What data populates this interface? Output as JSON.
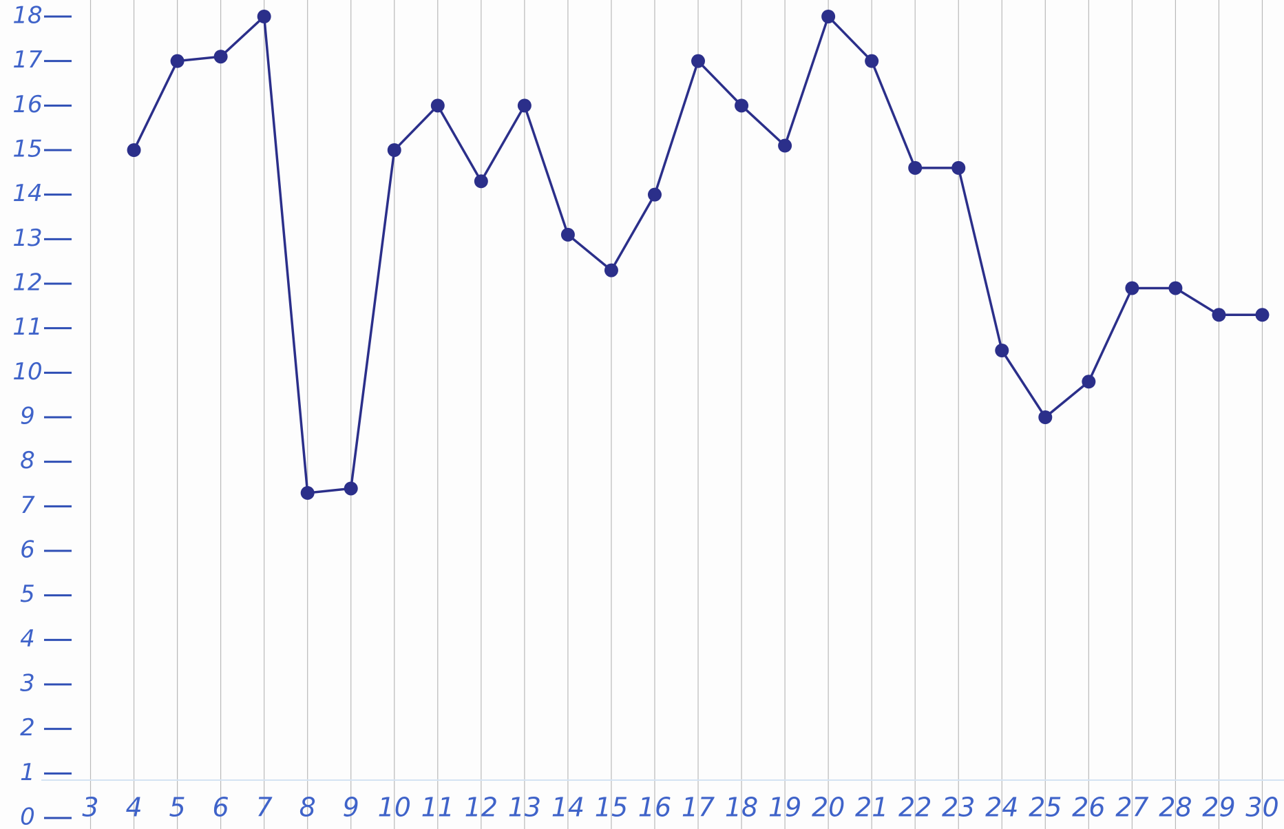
{
  "chart_data": {
    "type": "line",
    "categories": [
      "3",
      "4",
      "5",
      "6",
      "7",
      "8",
      "9",
      "10",
      "11",
      "12",
      "13",
      "14",
      "15",
      "16",
      "17",
      "18",
      "19",
      "20",
      "21",
      "22",
      "23",
      "24",
      "25",
      "26",
      "27",
      "28",
      "29",
      "30"
    ],
    "series": [
      {
        "color": "#2b2f8a",
        "values": [
          null,
          15,
          17,
          17.1,
          18,
          7.3,
          7.4,
          15,
          16,
          14.3,
          16,
          13.1,
          12.3,
          14,
          17,
          16,
          15.1,
          18,
          17,
          14.6,
          14.6,
          10.5,
          9,
          9.8,
          11.9,
          11.9,
          11.3,
          11.3
        ]
      }
    ],
    "ylim": [
      0,
      18
    ],
    "yticks": [
      0,
      1,
      2,
      3,
      4,
      5,
      6,
      7,
      8,
      9,
      10,
      11,
      12,
      13,
      14,
      15,
      16,
      17,
      18
    ],
    "grid": false
  }
}
